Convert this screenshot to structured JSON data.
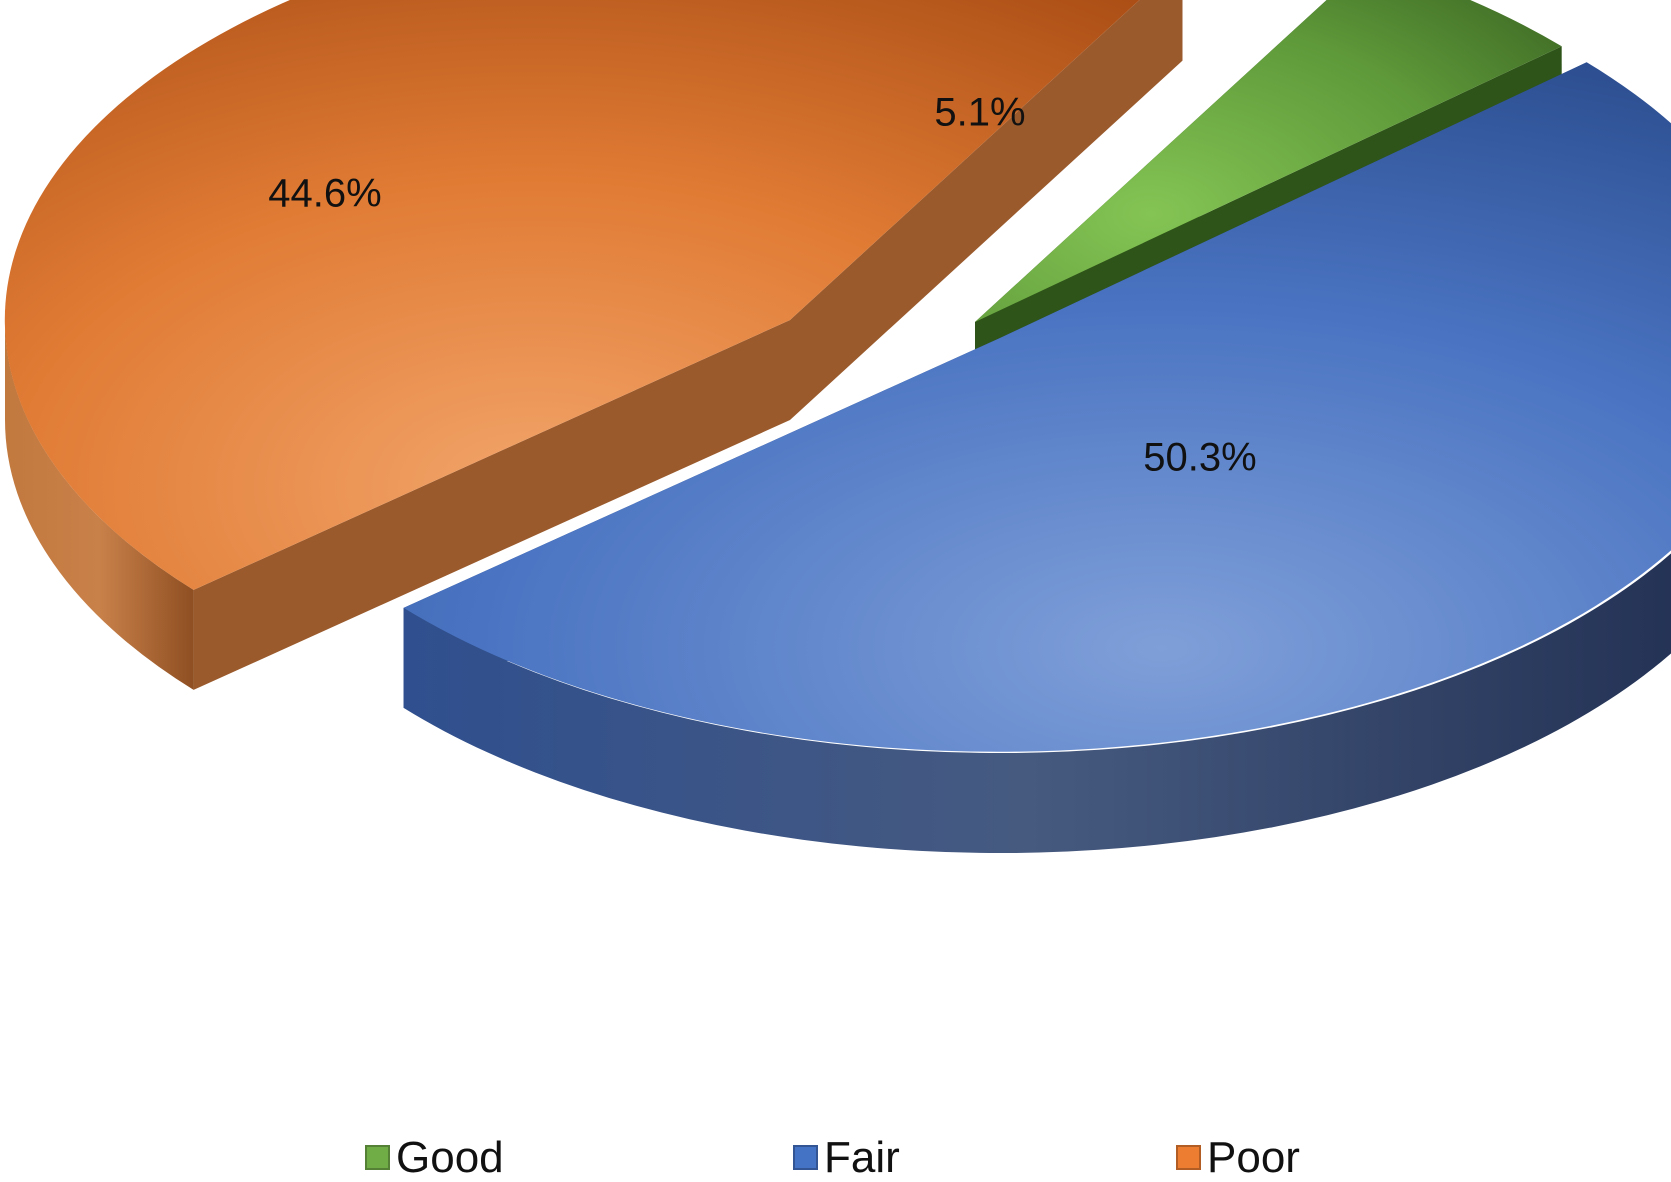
{
  "chart_data": {
    "type": "pie",
    "style": "3d-exploded",
    "title": "",
    "legend_position": "bottom",
    "slices": [
      {
        "label": "Good",
        "value": 5.1,
        "display": "5.1%",
        "color": "#70ad47"
      },
      {
        "label": "Fair",
        "value": 50.3,
        "display": "50.3%",
        "color": "#4472c4"
      },
      {
        "label": "Poor",
        "value": 44.6,
        "display": "44.6%",
        "color": "#ed7d31"
      }
    ]
  }
}
